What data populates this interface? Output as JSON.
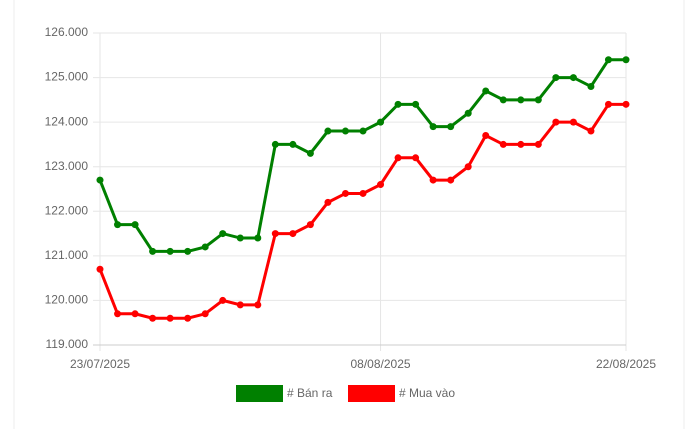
{
  "chart_data": {
    "type": "line",
    "categories": [
      "23/07/2025",
      null,
      null,
      null,
      null,
      null,
      null,
      null,
      null,
      null,
      null,
      null,
      null,
      null,
      null,
      null,
      "08/08/2025",
      null,
      null,
      null,
      null,
      null,
      null,
      null,
      null,
      null,
      null,
      null,
      null,
      null,
      "22/08/2025"
    ],
    "series": [
      {
        "name": "# Bán ra",
        "color": "#008000",
        "values": [
          122700,
          121700,
          121700,
          121100,
          121100,
          121100,
          121200,
          121500,
          121400,
          121400,
          123500,
          123500,
          123300,
          123800,
          123800,
          123800,
          124000,
          124400,
          124400,
          123900,
          123900,
          124200,
          124700,
          124500,
          124500,
          124500,
          125000,
          125000,
          124800,
          125400,
          125400
        ]
      },
      {
        "name": "# Mua vào",
        "color": "#ff0000",
        "values": [
          120700,
          119700,
          119700,
          119600,
          119600,
          119600,
          119700,
          120000,
          119900,
          119900,
          121500,
          121500,
          121700,
          122200,
          122400,
          122400,
          122600,
          123200,
          123200,
          122700,
          122700,
          123000,
          123700,
          123500,
          123500,
          123500,
          124000,
          124000,
          123800,
          124400,
          124400
        ]
      }
    ],
    "ylim": [
      119000,
      126000
    ],
    "yticks": [
      {
        "value": 119000,
        "label": "119.000"
      },
      {
        "value": 120000,
        "label": "120.000"
      },
      {
        "value": 121000,
        "label": "121.000"
      },
      {
        "value": 122000,
        "label": "122.000"
      },
      {
        "value": 123000,
        "label": "123.000"
      },
      {
        "value": 124000,
        "label": "124.000"
      },
      {
        "value": 125000,
        "label": "125.000"
      },
      {
        "value": 126000,
        "label": "126.000"
      }
    ],
    "grid": true
  }
}
